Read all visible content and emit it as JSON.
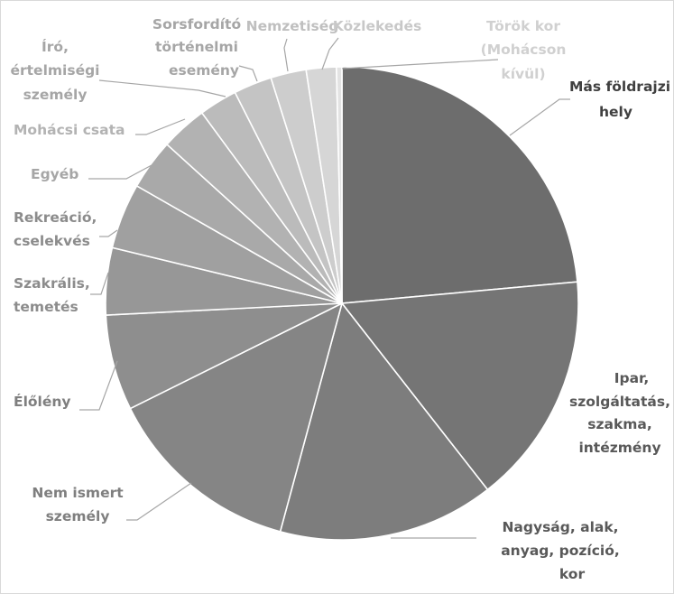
{
  "chart_data": {
    "type": "pie",
    "title": "",
    "slices": [
      {
        "label": "Más földrajzi hely",
        "value": 25.2,
        "color": "#6d6d6d",
        "text_color": "#404040"
      },
      {
        "label": "Ipar, szolgáltatás, szakma, intézmény",
        "value": 17.0,
        "color": "#757575",
        "text_color": "#595959"
      },
      {
        "label": "Nagyság, alak, anyag, pozíció, kor",
        "value": 15.8,
        "color": "#7d7d7d",
        "text_color": "#595959"
      },
      {
        "label": "Nem ismert személy",
        "value": 14.4,
        "color": "#858585",
        "text_color": "#7f7f7f"
      },
      {
        "label": "Élőlény",
        "value": 7.0,
        "color": "#8e8e8e",
        "text_color": "#7f7f7f"
      },
      {
        "label": "Szakrális, temetés",
        "value": 4.9,
        "color": "#979797",
        "text_color": "#8c8c8c"
      },
      {
        "label": "Rekreáció, cselekvés",
        "value": 4.8,
        "color": "#a0a0a0",
        "text_color": "#8c8c8c"
      },
      {
        "label": "Egyéb",
        "value": 3.7,
        "color": "#a9a9a9",
        "text_color": "#a6a6a6"
      },
      {
        "label": "Mohácsi csata",
        "value": 3.4,
        "color": "#b2b2b2",
        "text_color": "#b3b3b3"
      },
      {
        "label": "Író, értelmiségi személy",
        "value": 2.8,
        "color": "#bbbbbb",
        "text_color": "#a6a6a6"
      },
      {
        "label": "Sorsfordító történelmi esemény",
        "value": 2.8,
        "color": "#c4c4c4",
        "text_color": "#a6a6a6"
      },
      {
        "label": "Nemzetiség",
        "value": 2.6,
        "color": "#cdcdcd",
        "text_color": "#bfbfbf"
      },
      {
        "label": "Közlekedés",
        "value": 2.2,
        "color": "#d6d6d6",
        "text_color": "#c8c8c8"
      },
      {
        "label": "Török kor (Mohácson kívül)",
        "value": 0.4,
        "color": "#e3e3e3",
        "text_color": "#d0d0d0"
      }
    ]
  }
}
